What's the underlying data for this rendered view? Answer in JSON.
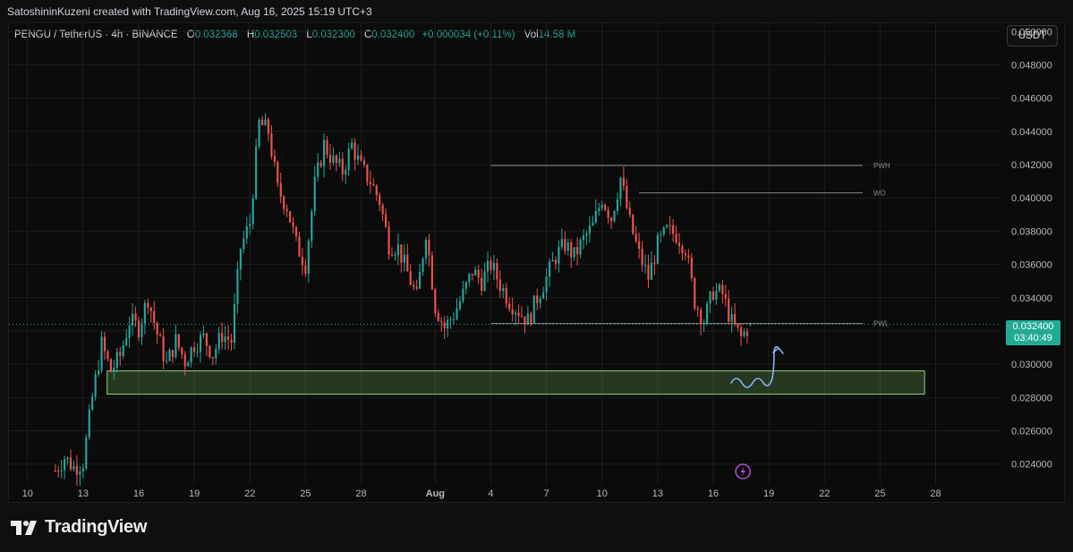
{
  "attribution": "SatoshininKuzeni created with TradingView.com, Aug 16, 2025 15:19 UTC+3",
  "legend": {
    "symbol": "PENGU / TetherUS · 4h · BINANCE",
    "open_label": "O",
    "open": "0.032368",
    "high_label": "H",
    "high": "0.032503",
    "low_label": "L",
    "low": "0.032300",
    "close_label": "C",
    "close": "0.032400",
    "change": "+0.000034 (+0.11%)",
    "vol_label": "Vol",
    "vol": "14.58 M"
  },
  "currency_button": "USDT",
  "price_tag": {
    "price": "0.032400",
    "countdown": "03:40:49"
  },
  "brand": "TradingView",
  "colors": {
    "up": "#26a69a",
    "down": "#ef5350",
    "zone": "#8bd96e",
    "level_line": "#8a8a8a",
    "drawing": "#8cb4f0",
    "lightning": "#b44fd6"
  },
  "chart_data": {
    "type": "candlestick",
    "symbol": "PENGU / TetherUS",
    "interval": "4h",
    "y_ticks": [
      "0.050000",
      "0.048000",
      "0.046000",
      "0.044000",
      "0.042000",
      "0.040000",
      "0.038000",
      "0.036000",
      "0.034000",
      "0.032000",
      "0.030000",
      "0.028000",
      "0.026000",
      "0.024000"
    ],
    "y_range": [
      0.0228,
      0.0505
    ],
    "x_ticks": [
      "10",
      "13",
      "16",
      "19",
      "22",
      "25",
      "28",
      "Aug",
      "4",
      "7",
      "10",
      "13",
      "16",
      "19",
      "22",
      "25",
      "28"
    ],
    "x_tick_days": [
      10,
      13,
      16,
      19,
      22,
      25,
      28,
      32,
      35,
      38,
      41,
      44,
      47,
      50,
      53,
      56,
      59
    ],
    "x_range_days": [
      9,
      62.5
    ],
    "x_day_origin": "Jul 1",
    "price_path": [
      [
        11.5,
        0.0236
      ],
      [
        12.0,
        0.0244
      ],
      [
        12.5,
        0.0238
      ],
      [
        13.0,
        0.0241
      ],
      [
        13.5,
        0.028
      ],
      [
        14.0,
        0.0312
      ],
      [
        14.5,
        0.0296
      ],
      [
        15.0,
        0.0305
      ],
      [
        15.5,
        0.0326
      ],
      [
        16.0,
        0.0322
      ],
      [
        16.5,
        0.034
      ],
      [
        17.0,
        0.0318
      ],
      [
        17.5,
        0.03
      ],
      [
        18.0,
        0.0314
      ],
      [
        18.5,
        0.0302
      ],
      [
        19.0,
        0.0312
      ],
      [
        19.5,
        0.0316
      ],
      [
        20.0,
        0.0306
      ],
      [
        20.5,
        0.0318
      ],
      [
        21.0,
        0.0314
      ],
      [
        21.5,
        0.037
      ],
      [
        22.0,
        0.0385
      ],
      [
        22.5,
        0.0445
      ],
      [
        23.0,
        0.044
      ],
      [
        23.5,
        0.0405
      ],
      [
        24.0,
        0.0395
      ],
      [
        24.5,
        0.0372
      ],
      [
        25.0,
        0.036
      ],
      [
        25.5,
        0.0408
      ],
      [
        26.0,
        0.0432
      ],
      [
        26.5,
        0.0422
      ],
      [
        27.0,
        0.0416
      ],
      [
        27.5,
        0.0432
      ],
      [
        28.0,
        0.0418
      ],
      [
        28.5,
        0.041
      ],
      [
        29.0,
        0.0398
      ],
      [
        29.5,
        0.0372
      ],
      [
        30.0,
        0.037
      ],
      [
        30.5,
        0.0355
      ],
      [
        31.0,
        0.034
      ],
      [
        31.5,
        0.038
      ],
      [
        32.0,
        0.0335
      ],
      [
        32.5,
        0.0322
      ],
      [
        33.0,
        0.033
      ],
      [
        33.5,
        0.0342
      ],
      [
        34.0,
        0.0356
      ],
      [
        34.5,
        0.035
      ],
      [
        35.0,
        0.036
      ],
      [
        35.5,
        0.0348
      ],
      [
        36.0,
        0.0338
      ],
      [
        36.5,
        0.0332
      ],
      [
        37.0,
        0.0326
      ],
      [
        37.5,
        0.034
      ],
      [
        38.0,
        0.0352
      ],
      [
        38.5,
        0.0365
      ],
      [
        39.0,
        0.0372
      ],
      [
        39.5,
        0.0365
      ],
      [
        40.0,
        0.0375
      ],
      [
        40.5,
        0.0383
      ],
      [
        41.0,
        0.04
      ],
      [
        41.5,
        0.0388
      ],
      [
        42.0,
        0.0412
      ],
      [
        42.5,
        0.0385
      ],
      [
        43.0,
        0.0366
      ],
      [
        43.5,
        0.0352
      ],
      [
        44.0,
        0.0372
      ],
      [
        44.5,
        0.038
      ],
      [
        45.0,
        0.0378
      ],
      [
        45.5,
        0.037
      ],
      [
        46.0,
        0.0338
      ],
      [
        46.5,
        0.0326
      ],
      [
        47.0,
        0.0344
      ],
      [
        47.5,
        0.0342
      ],
      [
        48.0,
        0.0325
      ],
      [
        48.5,
        0.0316
      ],
      [
        49.0,
        0.0324
      ]
    ],
    "last": {
      "open": 0.032368,
      "high": 0.032503,
      "low": 0.0323,
      "close": 0.0324
    },
    "levels": [
      {
        "label": "PWH",
        "price": 0.04195,
        "from_day": 35
      },
      {
        "label": "WO",
        "price": 0.0403,
        "from_day": 43
      },
      {
        "label": "PWL",
        "price": 0.03245,
        "from_day": 35
      }
    ],
    "demand_zone": {
      "low": 0.0282,
      "high": 0.0296,
      "from_day": 14.3,
      "to_day": 58.4
    },
    "drawing_day": 49.8,
    "event_icon_day": 48.6
  }
}
